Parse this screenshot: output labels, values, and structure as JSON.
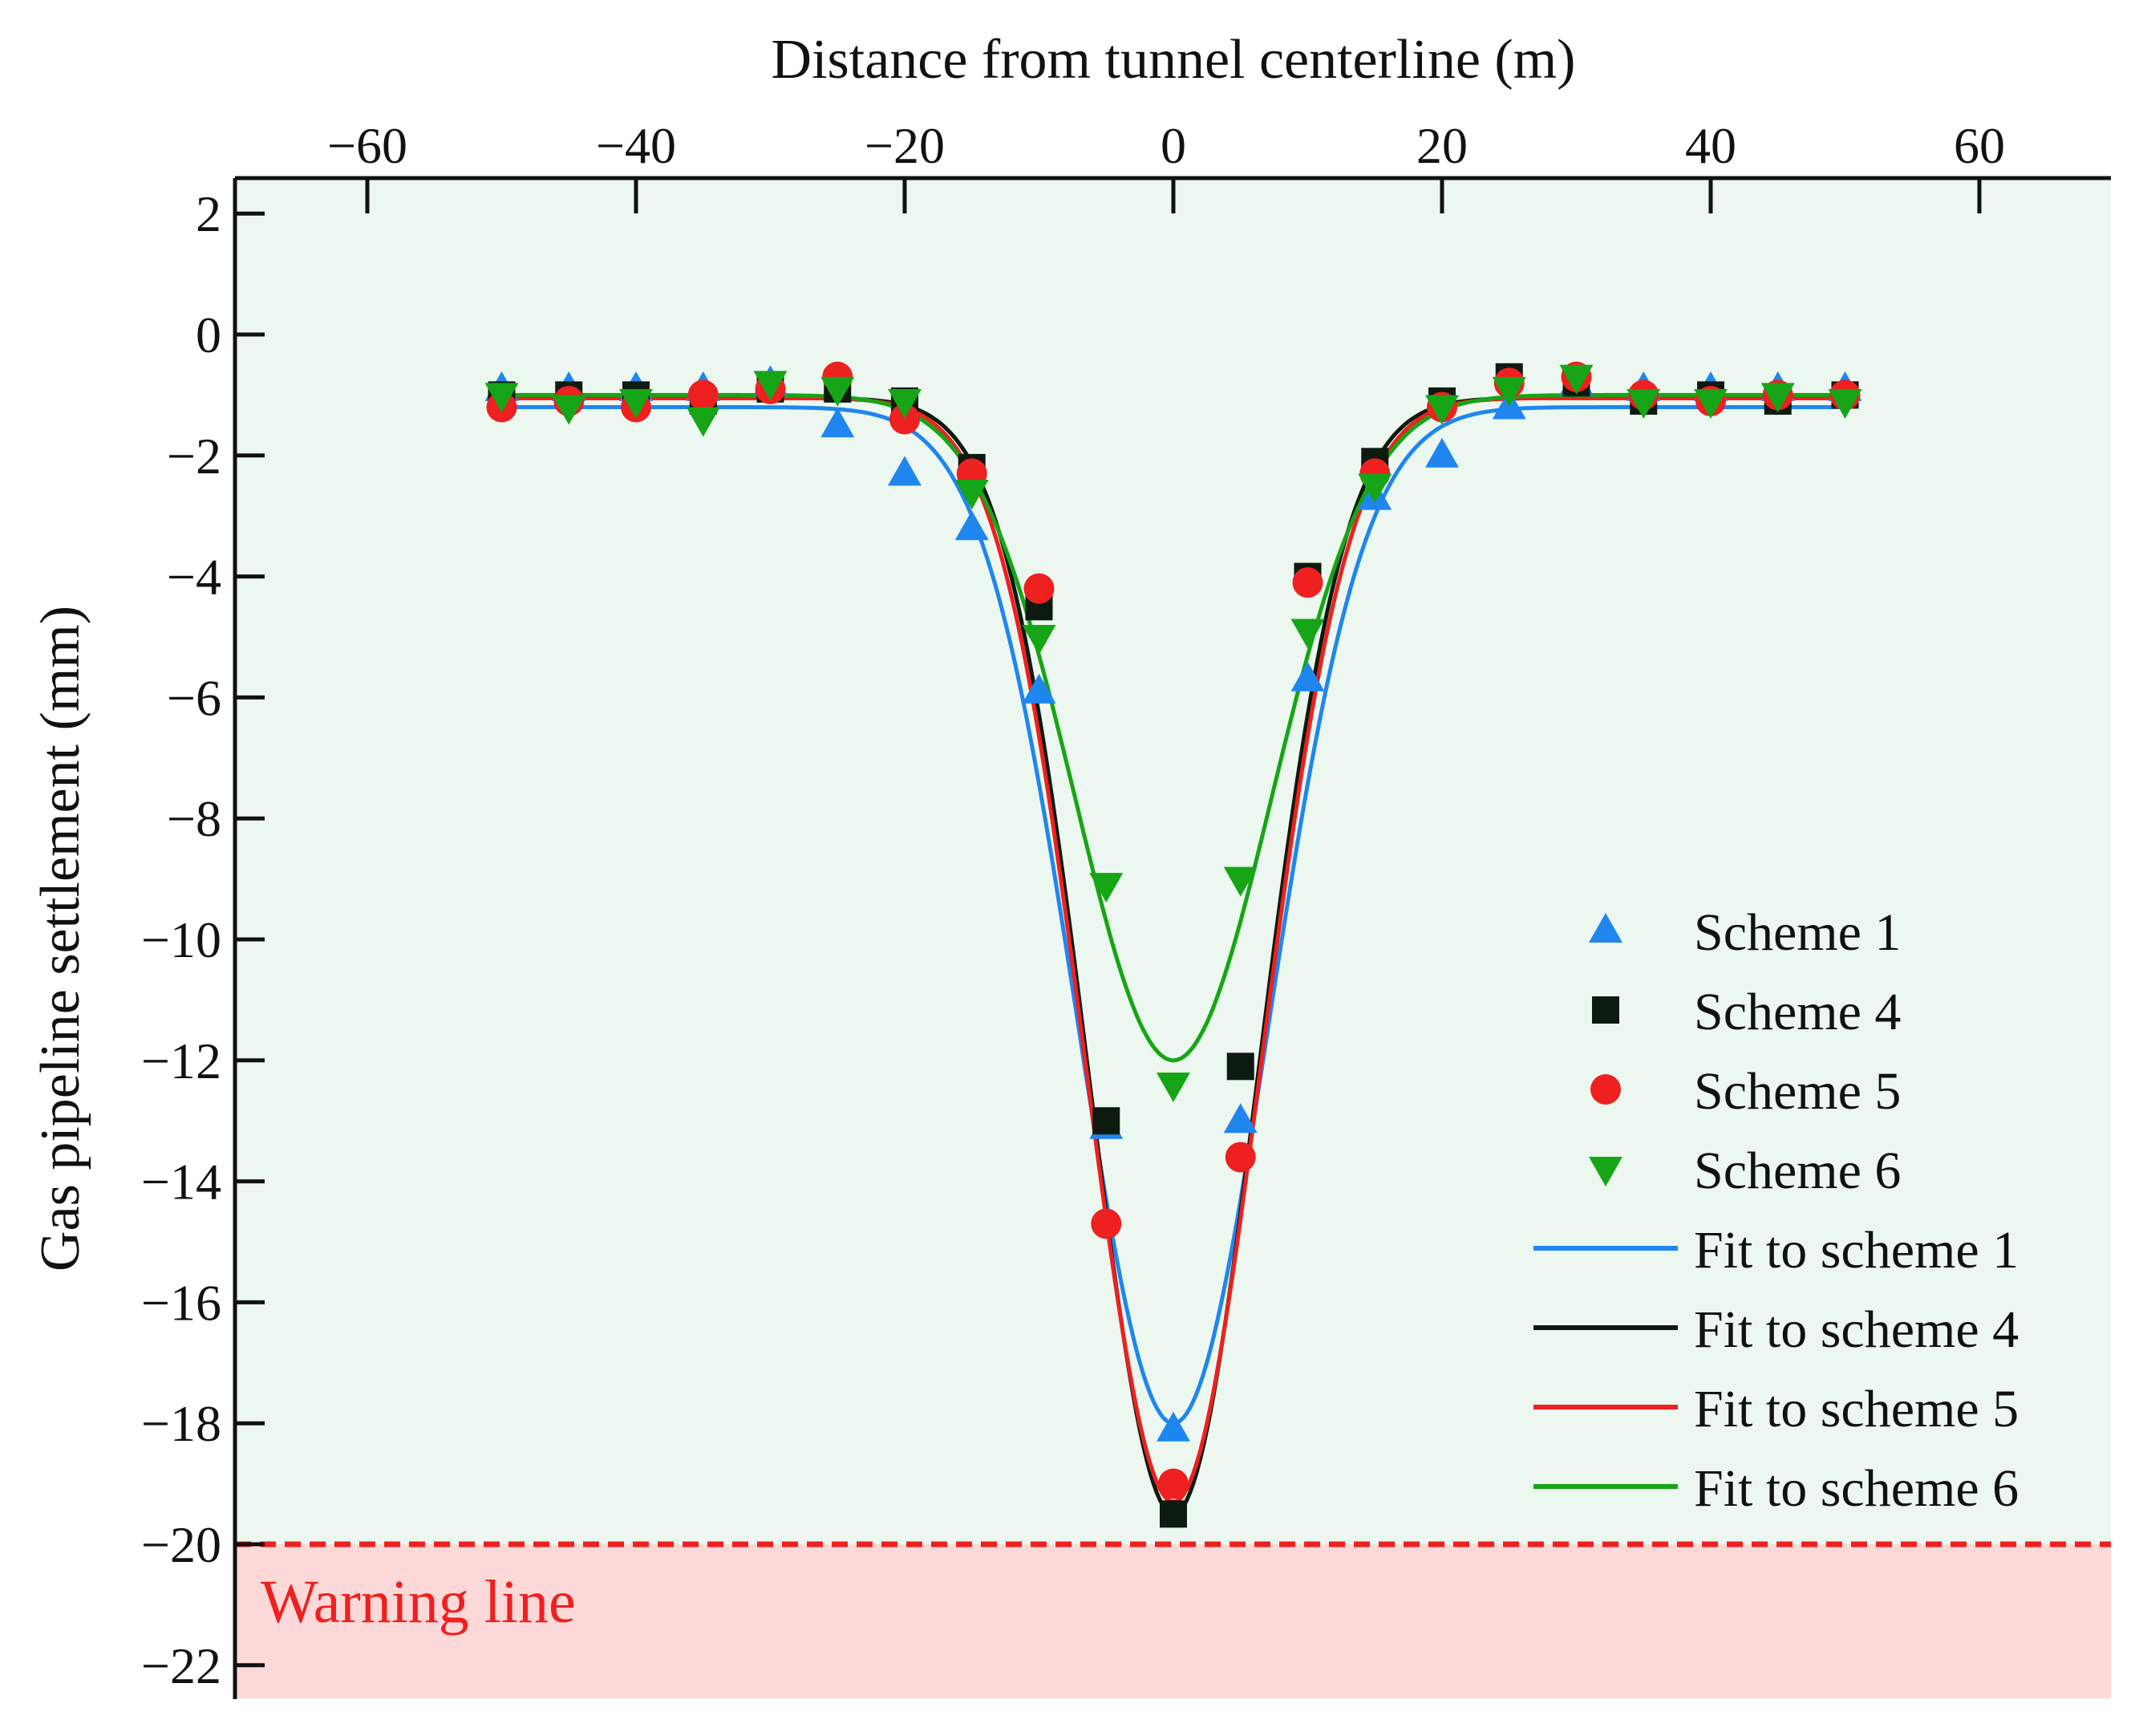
{
  "chart_data": {
    "type": "scatter",
    "xlabel": "Distance from tunnel centerline (m)",
    "ylabel": "Gas pipeline settlement (mm)",
    "x_axis_position": "top",
    "xlim": [
      -70,
      70
    ],
    "ylim": [
      -22.5,
      2.5
    ],
    "xticks": [
      -60,
      -40,
      -20,
      0,
      20,
      40,
      60
    ],
    "yticks": [
      2,
      0,
      -2,
      -4,
      -6,
      -8,
      -10,
      -12,
      -14,
      -16,
      -18,
      -20,
      -22
    ],
    "colors": {
      "scheme1": "#1f86f0",
      "scheme4": "#0d1a10",
      "scheme5": "#ee2020",
      "scheme6": "#16a516",
      "safe_zone": "#ecf8ef",
      "warning_zone": "#fdd8d8",
      "warning_line": "#ee2020",
      "axis": "#111111"
    },
    "warning": {
      "value": -20,
      "label": "Warning line"
    },
    "legend_position": "right",
    "scatter_series": [
      {
        "name": "Scheme 1",
        "marker": "triangle-up",
        "color_key": "scheme1",
        "x": [
          -50,
          -45,
          -40,
          -35,
          -30,
          -25,
          -20,
          -15,
          -10,
          -5,
          0,
          5,
          10,
          15,
          20,
          25,
          30,
          35,
          40,
          45,
          50
        ],
        "y": [
          -0.9,
          -0.9,
          -0.9,
          -0.9,
          -0.8,
          -1.5,
          -2.3,
          -3.2,
          -5.9,
          -13.1,
          -18.1,
          -13.0,
          -5.7,
          -2.7,
          -2.0,
          -1.2,
          -0.8,
          -0.9,
          -0.9,
          -0.9,
          -0.9
        ]
      },
      {
        "name": "Scheme 4",
        "marker": "square",
        "color_key": "scheme4",
        "x": [
          -50,
          -45,
          -40,
          -35,
          -30,
          -25,
          -20,
          -15,
          -10,
          -5,
          0,
          5,
          10,
          15,
          20,
          25,
          30,
          35,
          40,
          45,
          50
        ],
        "y": [
          -1.0,
          -1.0,
          -1.0,
          -1.1,
          -0.9,
          -0.9,
          -1.1,
          -2.2,
          -4.5,
          -13.0,
          -19.5,
          -12.1,
          -4.0,
          -2.1,
          -1.1,
          -0.7,
          -0.8,
          -1.1,
          -1.0,
          -1.1,
          -1.0
        ]
      },
      {
        "name": "Scheme 5",
        "marker": "circle",
        "color_key": "scheme5",
        "x": [
          -50,
          -45,
          -40,
          -35,
          -30,
          -25,
          -20,
          -15,
          -10,
          -5,
          0,
          5,
          10,
          15,
          20,
          25,
          30,
          35,
          40,
          45,
          50
        ],
        "y": [
          -1.2,
          -1.1,
          -1.2,
          -1.0,
          -0.9,
          -0.7,
          -1.4,
          -2.3,
          -4.2,
          -14.7,
          -19.0,
          -13.6,
          -4.1,
          -2.3,
          -1.2,
          -0.8,
          -0.7,
          -1.0,
          -1.1,
          -1.0,
          -1.0
        ]
      },
      {
        "name": "Scheme 6",
        "marker": "triangle-down",
        "color_key": "scheme6",
        "x": [
          -50,
          -45,
          -40,
          -35,
          -30,
          -25,
          -20,
          -15,
          -10,
          -5,
          0,
          5,
          10,
          15,
          20,
          25,
          30,
          35,
          40,
          45,
          50
        ],
        "y": [
          -1.0,
          -1.2,
          -1.1,
          -1.4,
          -0.8,
          -0.9,
          -1.1,
          -2.6,
          -5.0,
          -9.1,
          -12.4,
          -9.0,
          -4.9,
          -2.5,
          -1.2,
          -0.9,
          -0.7,
          -1.1,
          -1.1,
          -1.0,
          -1.1
        ]
      }
    ],
    "fit_series": [
      {
        "name": "Fit to scheme 1",
        "color_key": "scheme1",
        "baseline": -1.2,
        "amplitude": -16.8,
        "i": 7.1,
        "x_range": [
          -50,
          50
        ]
      },
      {
        "name": "Fit to scheme 4",
        "color_key": "scheme4",
        "baseline": -1.05,
        "amplitude": -18.45,
        "i": 6.3,
        "x_range": [
          -50,
          50
        ]
      },
      {
        "name": "Fit to scheme 5",
        "color_key": "scheme5",
        "baseline": -1.05,
        "amplitude": -18.25,
        "i": 6.5,
        "x_range": [
          -50,
          50
        ]
      },
      {
        "name": "Fit to scheme 6",
        "color_key": "scheme6",
        "baseline": -1.0,
        "amplitude": -11.0,
        "i": 7.3,
        "x_range": [
          -50,
          50
        ]
      }
    ]
  }
}
